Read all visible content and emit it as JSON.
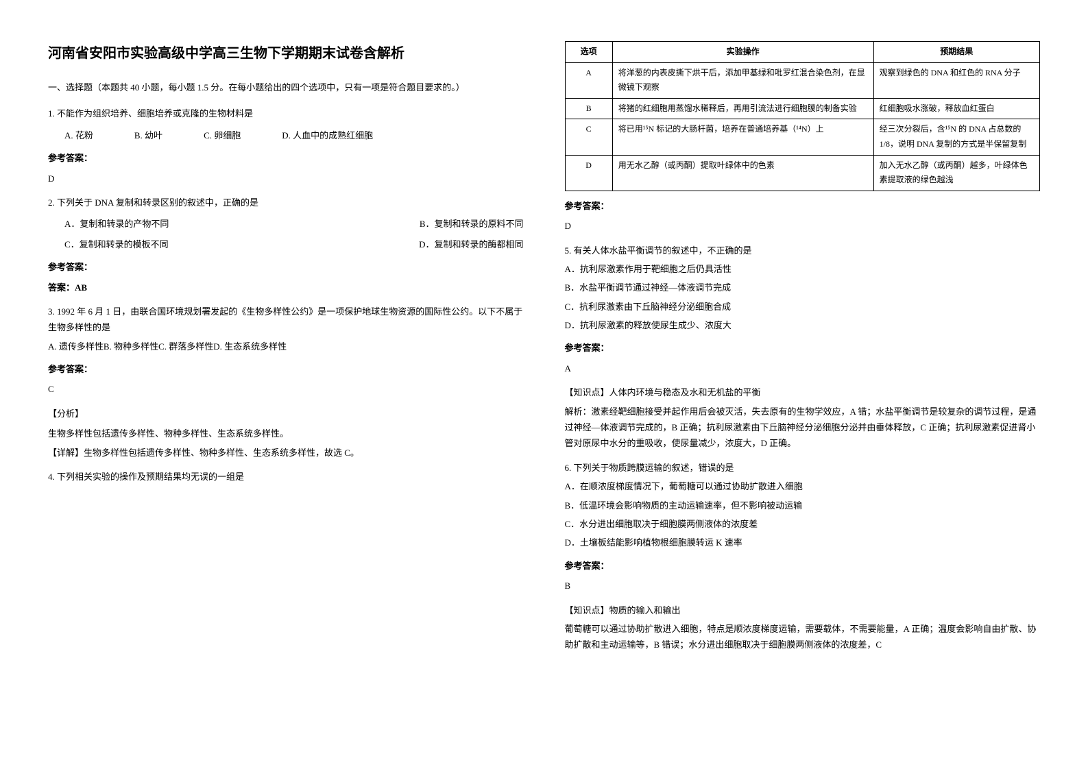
{
  "title": "河南省安阳市实验高级中学高三生物下学期期末试卷含解析",
  "section_header": "一、选择题（本题共 40 小题，每小题 1.5 分。在每小题给出的四个选项中，只有一项是符合题目要求的。）",
  "answer_label": "参考答案：",
  "q1": {
    "text": "1. 不能作为组织培养、细胞培养或克隆的生物材料是",
    "opts": {
      "a": "A. 花粉",
      "b": "B. 幼叶",
      "c": "C. 卵细胞",
      "d": "D. 人血中的成熟红细胞"
    },
    "answer": "D"
  },
  "q2": {
    "text": "2. 下列关于 DNA 复制和转录区别的叙述中，正确的是",
    "opts": {
      "a": "A．复制和转录的产物不同",
      "b": "B．复制和转录的原料不同",
      "c": "C．复制和转录的模板不同",
      "d": "D．复制和转录的酶都相同"
    },
    "answer_line": "答案：AB"
  },
  "q3": {
    "text": "3. 1992 年 6 月 1 日，由联合国环境规划署发起的《生物多样性公约》是一项保护地球生物资源的国际性公约。以下不属于生物多样性的是",
    "opts_line": "A. 遗传多样性B. 物种多样性C. 群落多样性D. 生态系统多样性",
    "answer": "C",
    "analysis_label": "【分析】",
    "analysis_text": "生物多样性包括遗传多样性、物种多样性、生态系统多样性。",
    "detail": "【详解】生物多样性包括遗传多样性、物种多样性、生态系统多样性，故选 C。"
  },
  "q4": {
    "text": "4. 下列相关实验的操作及预期结果均无误的一组是",
    "table": {
      "headers": {
        "opt": "选项",
        "exp": "实验操作",
        "res": "预期结果"
      },
      "rows": [
        {
          "opt": "A",
          "exp": "将洋葱的内表皮撕下烘干后，添加甲基绿和吡罗红混合染色剂，在显微镜下观察",
          "res": "观察到绿色的 DNA 和红色的 RNA 分子"
        },
        {
          "opt": "B",
          "exp": "将猪的红细胞用蒸馏水稀释后，再用引流法进行细胞膜的制备实验",
          "res": "红细胞吸水涨破，释放血红蛋白"
        },
        {
          "opt": "C",
          "exp": "将已用¹⁵N 标记的大肠杆菌，培养在普通培养基（¹⁴N）上",
          "res": "经三次分裂后，含¹⁵N 的 DNA 占总数的 1/8，说明 DNA 复制的方式是半保留复制"
        },
        {
          "opt": "D",
          "exp": "用无水乙醇（或丙酮）提取叶绿体中的色素",
          "res": "加入无水乙醇（或丙酮）越多，叶绿体色素提取液的绿色越浅"
        }
      ]
    },
    "answer": "D"
  },
  "q5": {
    "text": "5. 有关人体水盐平衡调节的叙述中，不正确的是",
    "opts": {
      "a": "A．抗利尿激素作用于靶细胞之后仍具活性",
      "b": "B．水盐平衡调节通过神经—体液调节完成",
      "c": "C．抗利尿激素由下丘脑神经分泌细胞合成",
      "d": "D．抗利尿激素的释放使尿生成少、浓度大"
    },
    "answer": "A",
    "knowledge_label": "【知识点】人体内环境与稳态及水和无机盐的平衡",
    "analysis": "解析：激素经靶细胞接受并起作用后会被灭活，失去原有的生物学效应，A 错；水盐平衡调节是较复杂的调节过程，是通过神经—体液调节完成的，B 正确；抗利尿激素由下丘脑神经分泌细胞分泌并由垂体释放，C 正确；抗利尿激素促进肾小管对原尿中水分的重吸收，使尿量减少，浓度大，D 正确。"
  },
  "q6": {
    "text": "6. 下列关于物质跨膜运输的叙述，错误的是",
    "opts": {
      "a": "A．在顺浓度梯度情况下，葡萄糖可以通过协助扩散进入细胞",
      "b": "B．低温环境会影响物质的主动运输速率，但不影响被动运输",
      "c": "C．水分进出细胞取决于细胞膜两侧液体的浓度差",
      "d": "D．土壤板结能影响植物根细胞膜转运 K 速率"
    },
    "answer": "B",
    "knowledge_label": "【知识点】物质的输入和输出",
    "analysis": "葡萄糖可以通过协助扩散进入细胞，特点是顺浓度梯度运输，需要载体，不需要能量，A 正确；温度会影响自由扩散、协助扩散和主动运输等，B 错误；水分进出细胞取决于细胞膜两侧液体的浓度差，C"
  }
}
